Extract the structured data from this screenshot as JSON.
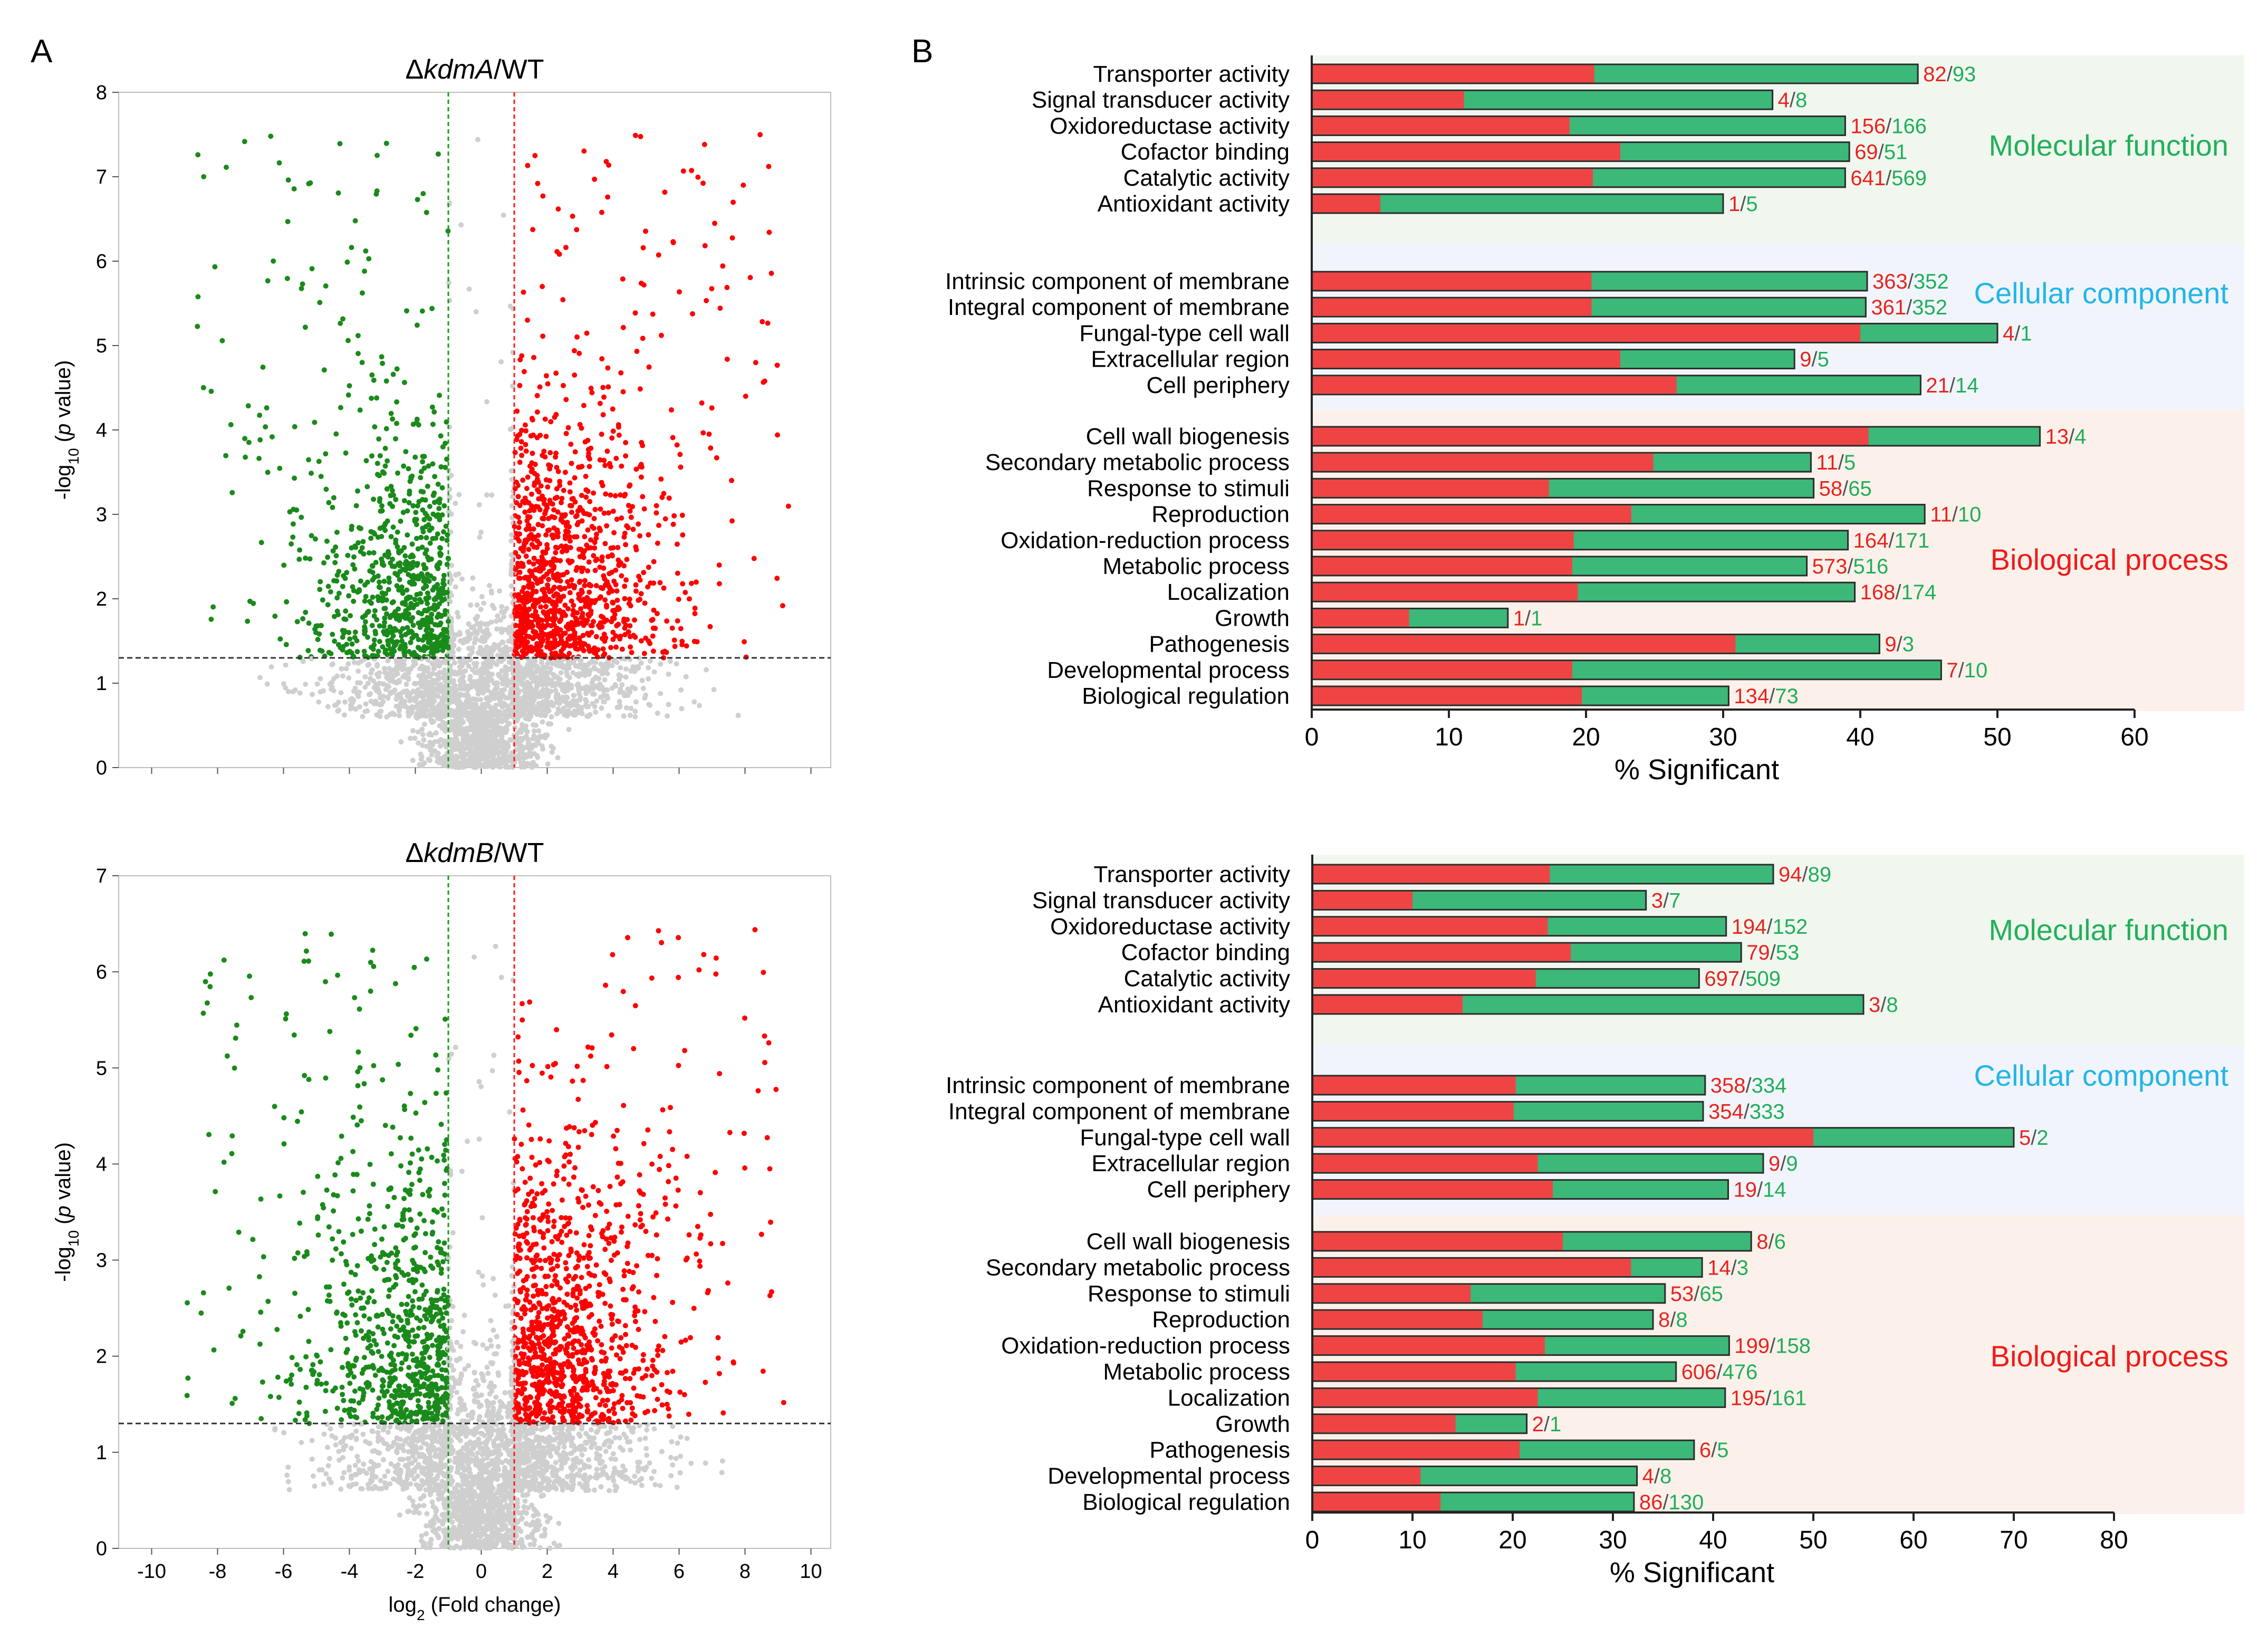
{
  "panel_labels": {
    "a": "A",
    "b": "B"
  },
  "colors": {
    "up": "#ff0000",
    "down": "#1a8a1a",
    "ns": "#cfcfcf",
    "bar_red": "#ef4444",
    "bar_green": "#3cb878",
    "value_red": "#e8231e",
    "value_green": "#1fae5a",
    "mf_bg": "#f1f7ef",
    "cc_bg": "#f1f5fb",
    "bp_bg": "#fcf1ea",
    "mf_text": "#22b05a",
    "cc_text": "#22b5e8",
    "bp_text": "#f01a1a"
  },
  "chart_data": [
    {
      "type": "scatter",
      "kind": "volcano",
      "title_prefix": "Δ",
      "title_gene": "kdmA",
      "title_suffix": "/WT",
      "xlabel_pre": "log",
      "xlabel_sub": "2",
      "xlabel_post": " (Fold change)",
      "ylabel_pre": "-log",
      "ylabel_sub": "10",
      "ylabel_mid": " (",
      "ylabel_ital": "p",
      "ylabel_post": " value)",
      "xlim": [
        -11,
        10.6
      ],
      "ylim": [
        0,
        8
      ],
      "yticks": [
        "0",
        "1",
        "2",
        "3",
        "4",
        "5",
        "6",
        "7",
        "8"
      ],
      "xticks": [],
      "thresholds": {
        "down_fc": -1,
        "up_fc": 1,
        "p": 1.3
      },
      "seed": 17
    },
    {
      "type": "scatter",
      "kind": "volcano",
      "title_prefix": "Δ",
      "title_gene": "kdmB",
      "title_suffix": "/WT",
      "xlabel_pre": "log",
      "xlabel_sub": "2",
      "xlabel_post": " (Fold change)",
      "ylabel_pre": "-log",
      "ylabel_sub": "10",
      "ylabel_mid": " (",
      "ylabel_ital": "p",
      "ylabel_post": " value)",
      "xlim": [
        -11,
        10.6
      ],
      "ylim": [
        0,
        7
      ],
      "yticks": [
        "0",
        "1",
        "2",
        "3",
        "4",
        "5",
        "6",
        "7"
      ],
      "xticks": [
        "-10",
        "-8",
        "-6",
        "-4",
        "-2",
        "0",
        "2",
        "4",
        "6",
        "8",
        "10"
      ],
      "thresholds": {
        "down_fc": -1,
        "up_fc": 1,
        "p": 1.3
      },
      "seed": 29
    },
    {
      "type": "bar",
      "orientation": "horizontal",
      "stacked": "overlay",
      "xlabel": "% Significant",
      "xlim": [
        0,
        60
      ],
      "xticks": [
        "0",
        "10",
        "20",
        "30",
        "40",
        "50",
        "60"
      ],
      "groups": [
        {
          "name": "Molecular function",
          "key": "mf",
          "categories": [
            "Transporter activity",
            "Signal transducer activity",
            "Oxidoreductase activity",
            "Cofactor binding",
            "Catalytic activity",
            "Antioxidant activity"
          ],
          "red": [
            20.6,
            11.1,
            18.8,
            22.5,
            20.5,
            5
          ],
          "total": [
            44.2,
            33.6,
            38.9,
            39.2,
            38.9,
            30
          ],
          "counts_red": [
            "82",
            "4",
            "156",
            "69",
            "641",
            "1"
          ],
          "counts_green": [
            "93",
            "8",
            "166",
            "51",
            "569",
            "5"
          ]
        },
        {
          "name": "Cellular component",
          "key": "cc",
          "categories": [
            "Intrinsic component of membrane",
            "Integral component of membrane",
            "Fungal-type cell wall",
            "Extracellular region",
            "Cell periphery"
          ],
          "red": [
            20.4,
            20.4,
            40,
            22.5,
            26.6
          ],
          "total": [
            40.5,
            40.4,
            50,
            35.2,
            44.4
          ],
          "counts_red": [
            "363",
            "361",
            "4",
            "9",
            "21"
          ],
          "counts_green": [
            "352",
            "352",
            "1",
            "5",
            "14"
          ]
        },
        {
          "name": "Biological process",
          "key": "bp",
          "categories": [
            "Cell wall biogenesis",
            "Secondary metabolic process",
            "Response to stimuli",
            "Reproduction",
            "Oxidation-reduction process",
            "Metabolic process",
            "Localization",
            "Growth",
            "Pathogenesis",
            "Developmental process",
            "Biological regulation"
          ],
          "red": [
            40.6,
            24.9,
            17.3,
            23.3,
            19.1,
            19,
            19.4,
            7.1,
            30.9,
            19,
            19.7
          ],
          "total": [
            53.1,
            36.4,
            36.6,
            44.7,
            39.1,
            36.1,
            39.6,
            14.3,
            41.4,
            45.9,
            30.4
          ],
          "counts_red": [
            "13",
            "11",
            "58",
            "11",
            "164",
            "573",
            "168",
            "1",
            "9",
            "7",
            "134"
          ],
          "counts_green": [
            "4",
            "5",
            "65",
            "10",
            "171",
            "516",
            "174",
            "1",
            "3",
            "10",
            "73"
          ]
        }
      ]
    },
    {
      "type": "bar",
      "orientation": "horizontal",
      "stacked": "overlay",
      "xlabel": "% Significant",
      "xlim": [
        0,
        80
      ],
      "xticks": [
        "0",
        "10",
        "20",
        "30",
        "40",
        "50",
        "60",
        "70",
        "80"
      ],
      "groups": [
        {
          "name": "Molecular function",
          "key": "mf",
          "categories": [
            "Transporter activity",
            "Signal transducer activity",
            "Oxidoreductase activity",
            "Cofactor binding",
            "Catalytic activity",
            "Antioxidant activity"
          ],
          "red": [
            23.7,
            10,
            23.5,
            25.8,
            22.3,
            15
          ],
          "total": [
            46,
            33.3,
            41.3,
            42.8,
            38.6,
            55
          ],
          "counts_red": [
            "94",
            "3",
            "194",
            "79",
            "697",
            "3"
          ],
          "counts_green": [
            "89",
            "7",
            "152",
            "53",
            "509",
            "8"
          ]
        },
        {
          "name": "Cellular component",
          "key": "cc",
          "categories": [
            "Intrinsic component of membrane",
            "Integral component of membrane",
            "Fungal-type cell wall",
            "Extracellular region",
            "Cell periphery"
          ],
          "red": [
            20.3,
            20.1,
            50,
            22.5,
            24
          ],
          "total": [
            39.2,
            39,
            70,
            45,
            41.5
          ],
          "counts_red": [
            "358",
            "354",
            "5",
            "9",
            "19"
          ],
          "counts_green": [
            "334",
            "333",
            "2",
            "9",
            "14"
          ]
        },
        {
          "name": "Biological process",
          "key": "bp",
          "categories": [
            "Cell wall biogenesis",
            "Secondary metabolic process",
            "Response to stimuli",
            "Reproduction",
            "Oxidation-reduction process",
            "Metabolic process",
            "Localization",
            "Growth",
            "Pathogenesis",
            "Developmental process",
            "Biological regulation"
          ],
          "red": [
            25,
            31.8,
            15.8,
            17,
            23.2,
            20.3,
            22.5,
            14.3,
            20.7,
            10.8,
            12.8
          ],
          "total": [
            43.8,
            38.9,
            35.2,
            34,
            41.6,
            36.3,
            41.2,
            21.4,
            38.1,
            32.4,
            32.1
          ],
          "counts_red": [
            "8",
            "14",
            "53",
            "8",
            "199",
            "606",
            "195",
            "2",
            "6",
            "4",
            "86"
          ],
          "counts_green": [
            "6",
            "3",
            "65",
            "8",
            "158",
            "476",
            "161",
            "1",
            "5",
            "8",
            "130"
          ]
        }
      ]
    }
  ]
}
